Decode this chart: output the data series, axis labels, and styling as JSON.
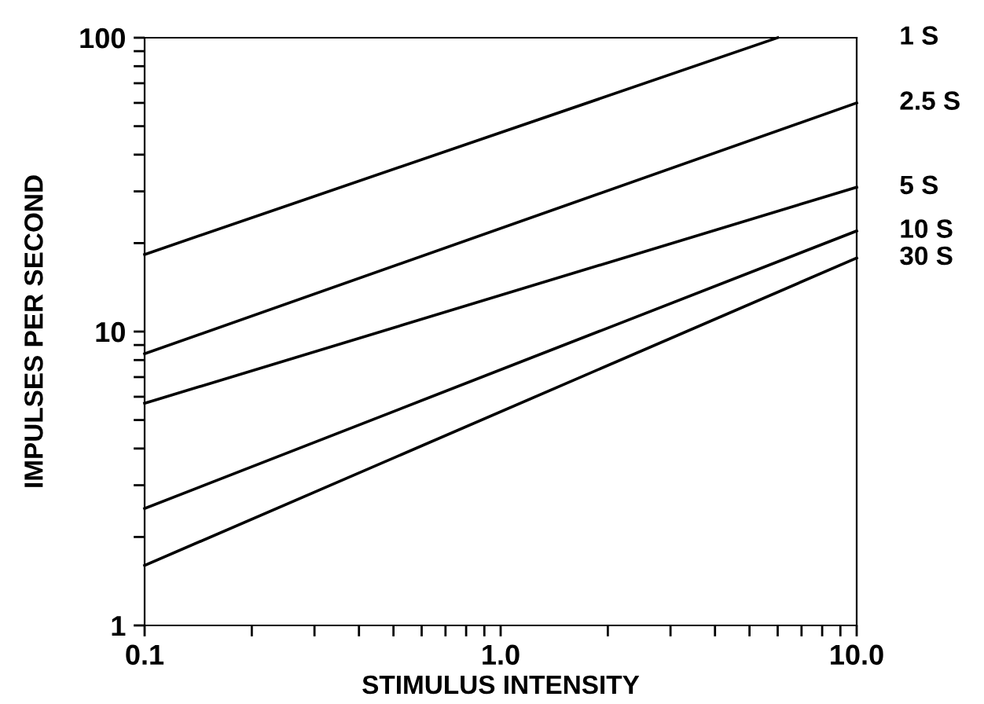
{
  "chart_data": {
    "type": "line",
    "xlabel": "STIMULUS INTENSITY",
    "ylabel": "IMPULSES PER SECOND",
    "log": "xy",
    "xlim": [
      0.1,
      10
    ],
    "ylim": [
      1,
      100
    ],
    "xticks": [
      {
        "value": 0.1,
        "label": "0.1"
      },
      {
        "value": 0.2,
        "label": null
      },
      {
        "value": 0.3,
        "label": null
      },
      {
        "value": 0.4,
        "label": null
      },
      {
        "value": 0.5,
        "label": null
      },
      {
        "value": 0.6,
        "label": null
      },
      {
        "value": 0.7,
        "label": null
      },
      {
        "value": 0.8,
        "label": null
      },
      {
        "value": 0.9,
        "label": null
      },
      {
        "value": 1,
        "label": "1.0"
      },
      {
        "value": 2,
        "label": null
      },
      {
        "value": 3,
        "label": null
      },
      {
        "value": 4,
        "label": null
      },
      {
        "value": 5,
        "label": null
      },
      {
        "value": 6,
        "label": null
      },
      {
        "value": 7,
        "label": null
      },
      {
        "value": 8,
        "label": null
      },
      {
        "value": 9,
        "label": null
      },
      {
        "value": 10,
        "label": "10.0"
      }
    ],
    "yticks": [
      1,
      {
        "value": 2,
        "label": null
      },
      {
        "value": 3,
        "label": null
      },
      {
        "value": 4,
        "label": null
      },
      {
        "value": 5,
        "label": null
      },
      {
        "value": 6,
        "label": null
      },
      {
        "value": 7,
        "label": null
      },
      {
        "value": 8,
        "label": null
      },
      {
        "value": 9,
        "label": null
      },
      10,
      {
        "value": 20,
        "label": null
      },
      {
        "value": 30,
        "label": null
      },
      {
        "value": 40,
        "label": null
      },
      {
        "value": 50,
        "label": null
      },
      {
        "value": 60,
        "label": null
      },
      {
        "value": 70,
        "label": null
      },
      {
        "value": 80,
        "label": null
      },
      {
        "value": 90,
        "label": null
      },
      100
    ],
    "grid": false,
    "legend": false,
    "marker": "none",
    "line_style": "solid",
    "series": [
      {
        "name": "1 S",
        "color": "#000000",
        "x": [
          0.1,
          6.0
        ],
        "values": [
          18.3,
          100
        ]
      },
      {
        "name": "2.5 S",
        "color": "#000000",
        "x": [
          0.1,
          10
        ],
        "values": [
          8.4,
          60
        ]
      },
      {
        "name": "5 S",
        "color": "#000000",
        "x": [
          0.1,
          10
        ],
        "values": [
          5.7,
          31
        ]
      },
      {
        "name": "10 S",
        "color": "#000000",
        "x": [
          0.1,
          10
        ],
        "values": [
          2.5,
          22
        ]
      },
      {
        "name": "30 S",
        "color": "#000000",
        "x": [
          0.1,
          10
        ],
        "values": [
          1.6,
          17.8
        ]
      }
    ]
  }
}
